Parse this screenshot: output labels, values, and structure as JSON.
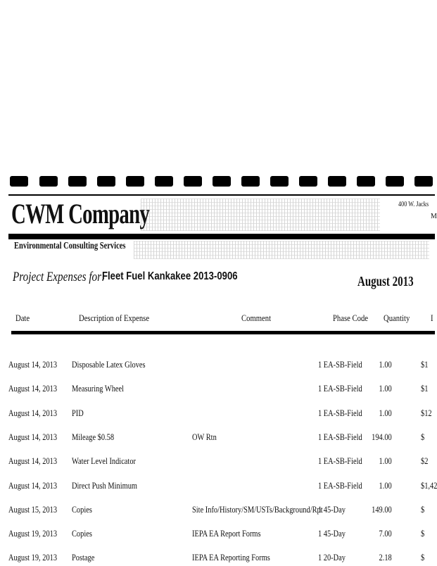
{
  "company": {
    "name": "CWM Company",
    "tagline": "Environmental Consulting Services",
    "address_fragment": "400 W. Jacks",
    "address_fragment2": "M"
  },
  "title": {
    "prefix": "Project Expenses for:",
    "project": "Fleet Fuel Kankakee 2013-0906",
    "period": "August 2013"
  },
  "table": {
    "headers": [
      "Date",
      "Description of Expense",
      "Comment",
      "Phase Code",
      "Quantity",
      "I"
    ],
    "rows": [
      {
        "date": "August 14, 2013",
        "description": "Disposable Latex Gloves",
        "comment": "",
        "phase": "1 EA-SB-Field",
        "quantity": "1.00",
        "rate": "$1"
      },
      {
        "date": "August 14, 2013",
        "description": "Measuring Wheel",
        "comment": "",
        "phase": "1 EA-SB-Field",
        "quantity": "1.00",
        "rate": "$1"
      },
      {
        "date": "August 14, 2013",
        "description": "PID",
        "comment": "",
        "phase": "1 EA-SB-Field",
        "quantity": "1.00",
        "rate": "$12"
      },
      {
        "date": "August 14, 2013",
        "description": "Mileage $0.58",
        "comment": "OW Rtn",
        "phase": "1 EA-SB-Field",
        "quantity": "194.00",
        "rate": "$"
      },
      {
        "date": "August 14, 2013",
        "description": "Water Level Indicator",
        "comment": "",
        "phase": "1 EA-SB-Field",
        "quantity": "1.00",
        "rate": "$2"
      },
      {
        "date": "August 14, 2013",
        "description": "Direct Push Minimum",
        "comment": "",
        "phase": "1 EA-SB-Field",
        "quantity": "1.00",
        "rate": "$1,42"
      },
      {
        "date": "August 15, 2013",
        "description": "Copies",
        "comment": "Site Info/History/SM/USTs/Background/Rpt",
        "phase": "1 45-Day",
        "quantity": "149.00",
        "rate": "$"
      },
      {
        "date": "August 19, 2013",
        "description": "Copies",
        "comment": "IEPA EA Report Forms",
        "phase": "1 45-Day",
        "quantity": "7.00",
        "rate": "$"
      },
      {
        "date": "August 19, 2013",
        "description": "Postage",
        "comment": "IEPA EA Reporting Forms",
        "phase": "1 20-Day",
        "quantity": "2.18",
        "rate": "$"
      }
    ]
  }
}
